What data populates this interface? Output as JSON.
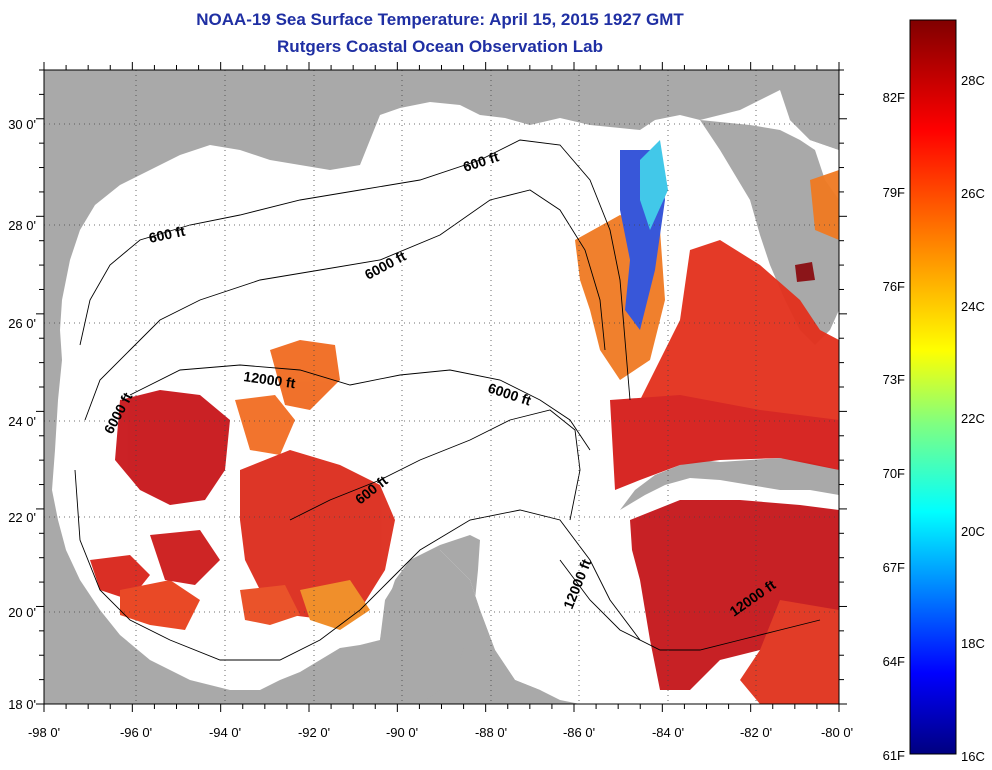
{
  "title": "NOAA-19 Sea Surface Temperature:  April 15, 2015 1927 GMT",
  "subtitle": "Rutgers Coastal Ocean Observation Lab",
  "map": {
    "lon_ticks": [
      "-98 0'",
      "-96 0'",
      "-94 0'",
      "-92 0'",
      "-90 0'",
      "-88 0'",
      "-86 0'",
      "-84 0'",
      "-82 0'",
      "-80 0'"
    ],
    "lat_ticks": [
      "30 0'",
      "28 0'",
      "26 0'",
      "24 0'",
      "22 0'",
      "20 0'",
      "18 0'"
    ],
    "lon_range": [
      -98,
      -80
    ],
    "lat_range": [
      18,
      31
    ],
    "contour_labels": [
      "600 ft",
      "600 ft",
      "6000 ft",
      "12000 ft",
      "6000 ft",
      "6000 ft",
      "600 ft",
      "12000 ft",
      "12000 ft"
    ]
  },
  "colorbar": {
    "fahrenheit_labels": [
      "82F",
      "79F",
      "76F",
      "73F",
      "70F",
      "67F",
      "64F",
      "61F"
    ],
    "celsius_labels": [
      "28C",
      "26C",
      "24C",
      "22C",
      "20C",
      "18C",
      "16C"
    ],
    "range_c": [
      16,
      29.5
    ],
    "colors": [
      "#000080",
      "#0000ff",
      "#0080ff",
      "#00ffff",
      "#80ff80",
      "#ffff00",
      "#ff8000",
      "#ff0000",
      "#800000"
    ]
  },
  "colors": {
    "land": "#a9a9a9",
    "ocean_nodata": "#ffffff",
    "title": "#1f2fa3"
  }
}
